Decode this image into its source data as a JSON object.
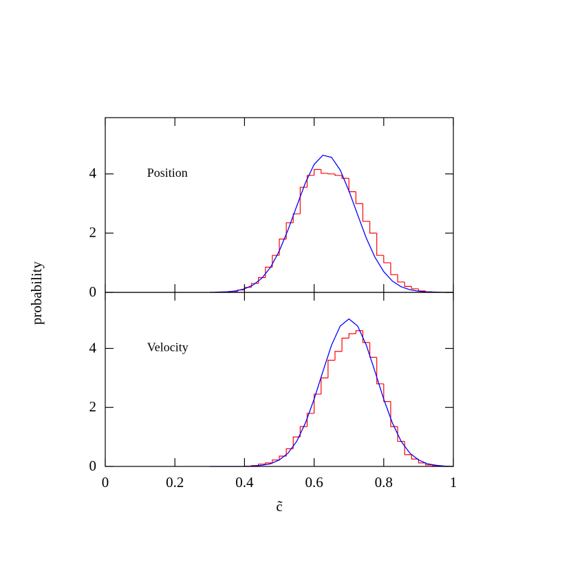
{
  "chart_data": [
    {
      "type": "histogram",
      "annotation": "Position",
      "ylabel": "probability",
      "xlim": [
        0,
        1
      ],
      "xticks": [
        0,
        0.2,
        0.4,
        0.6,
        0.8,
        1
      ],
      "ylim": [
        0,
        5.9
      ],
      "yticks": [
        0,
        2,
        4
      ],
      "bins": [
        0.34,
        0.36,
        0.38,
        0.4,
        0.42,
        0.44,
        0.46,
        0.48,
        0.5,
        0.52,
        0.54,
        0.56,
        0.58,
        0.6,
        0.62,
        0.64,
        0.66,
        0.68,
        0.7,
        0.72,
        0.74,
        0.76,
        0.78,
        0.8,
        0.82,
        0.84,
        0.86,
        0.88,
        0.9,
        0.92,
        0.94,
        0.96
      ],
      "values": [
        0.01,
        0.03,
        0.08,
        0.17,
        0.3,
        0.5,
        0.85,
        1.25,
        1.8,
        2.35,
        2.65,
        3.55,
        3.95,
        4.15,
        4.02,
        4.0,
        3.95,
        3.85,
        3.4,
        3.0,
        2.4,
        2.0,
        1.25,
        1.0,
        0.6,
        0.35,
        0.2,
        0.12,
        0.05,
        0.02,
        0.01
      ],
      "color": "#ff0000",
      "curve": {
        "color": "#0000ff",
        "x": [
          0.3,
          0.325,
          0.35,
          0.375,
          0.4,
          0.425,
          0.45,
          0.475,
          0.5,
          0.525,
          0.55,
          0.575,
          0.6,
          0.625,
          0.65,
          0.675,
          0.7,
          0.725,
          0.75,
          0.775,
          0.8,
          0.825,
          0.85,
          0.875,
          0.9,
          0.925,
          0.95,
          0.975,
          1
        ],
        "values": [
          0,
          0.01,
          0.02,
          0.05,
          0.12,
          0.25,
          0.48,
          0.85,
          1.4,
          2.11,
          2.91,
          3.7,
          4.32,
          4.63,
          4.56,
          4.13,
          3.43,
          2.62,
          1.83,
          1.18,
          0.7,
          0.38,
          0.19,
          0.09,
          0.04,
          0.01,
          0.01,
          0,
          0
        ]
      }
    },
    {
      "type": "histogram",
      "annotation": "Velocity",
      "xlabel": "c̃",
      "xlim": [
        0,
        1
      ],
      "xticks": [
        0,
        0.2,
        0.4,
        0.6,
        0.8,
        1
      ],
      "ylim": [
        0,
        5.9
      ],
      "yticks": [
        0,
        2,
        4
      ],
      "bins": [
        0.4,
        0.42,
        0.44,
        0.46,
        0.48,
        0.5,
        0.52,
        0.54,
        0.56,
        0.58,
        0.6,
        0.62,
        0.64,
        0.66,
        0.68,
        0.7,
        0.72,
        0.74,
        0.76,
        0.78,
        0.8,
        0.82,
        0.84,
        0.86,
        0.88,
        0.9,
        0.92,
        0.94,
        0.96
      ],
      "values": [
        0.01,
        0.03,
        0.08,
        0.12,
        0.22,
        0.35,
        0.6,
        1.0,
        1.35,
        1.8,
        2.45,
        3.0,
        3.6,
        3.9,
        4.35,
        4.5,
        4.6,
        4.2,
        3.7,
        2.8,
        2.2,
        1.35,
        0.85,
        0.4,
        0.25,
        0.12,
        0.05,
        0.02
      ],
      "color": "#ff0000",
      "curve": {
        "color": "#0000ff",
        "x": [
          0.3,
          0.325,
          0.35,
          0.375,
          0.4,
          0.425,
          0.45,
          0.475,
          0.5,
          0.525,
          0.55,
          0.575,
          0.6,
          0.625,
          0.65,
          0.675,
          0.7,
          0.725,
          0.75,
          0.775,
          0.8,
          0.825,
          0.85,
          0.875,
          0.9,
          0.925,
          0.95,
          0.975,
          1
        ],
        "values": [
          0,
          0,
          0,
          0,
          0,
          0.01,
          0.04,
          0.09,
          0.22,
          0.45,
          0.85,
          1.47,
          2.28,
          3.21,
          4.11,
          4.76,
          5.0,
          4.76,
          4.11,
          3.21,
          2.28,
          1.47,
          0.85,
          0.45,
          0.22,
          0.09,
          0.04,
          0.01,
          0
        ]
      }
    }
  ]
}
